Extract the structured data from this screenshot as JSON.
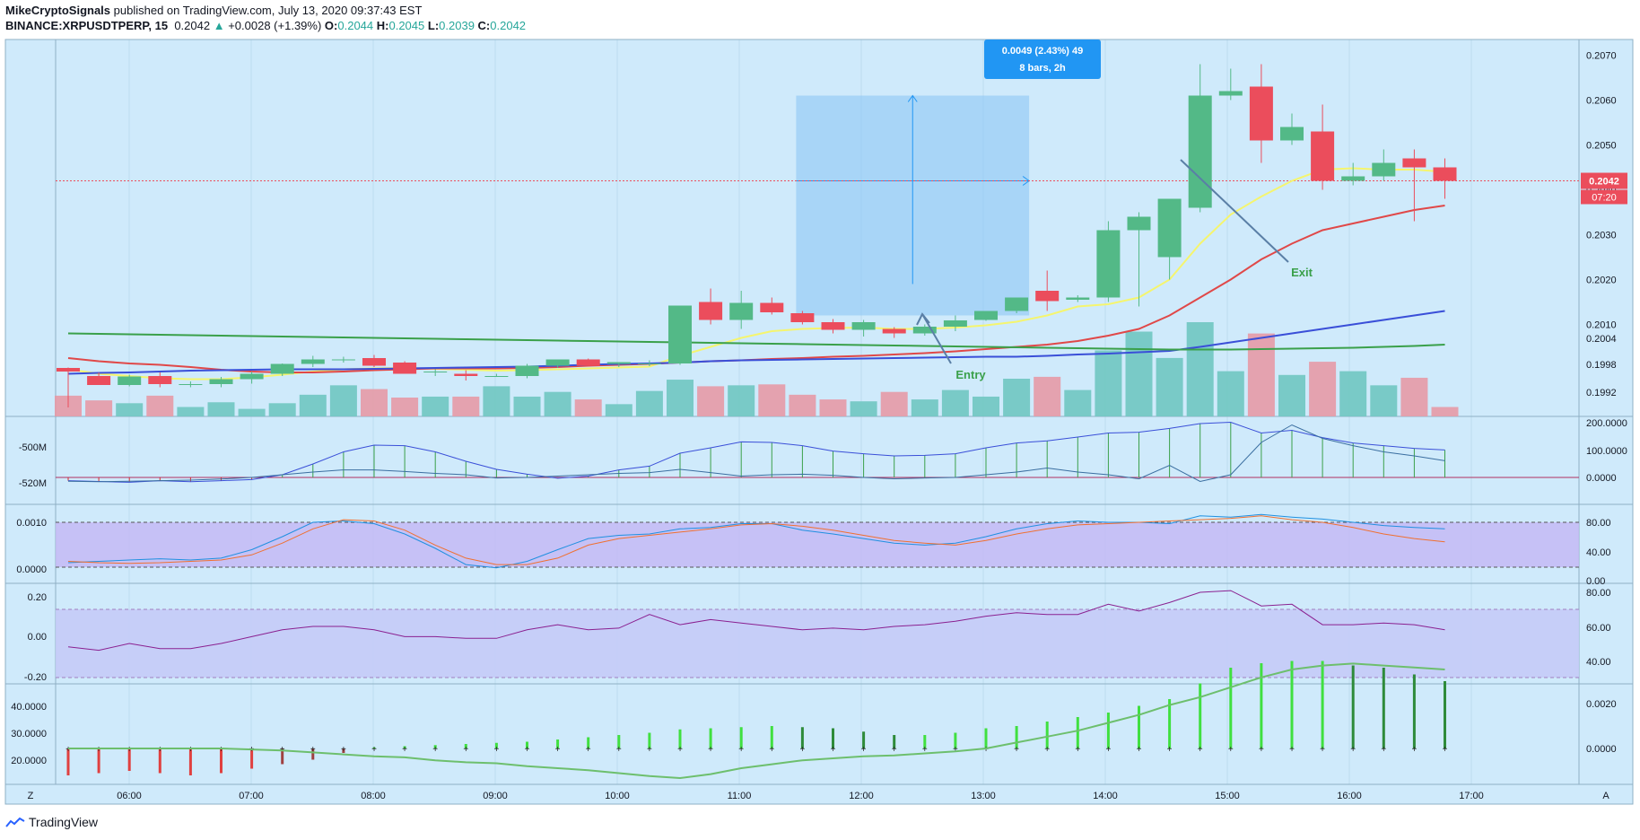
{
  "header": {
    "author": "MikeCryptoSignals",
    "published": "published on TradingView.com, July 13, 2020 09:37:43 EST",
    "symbol": "BINANCE:XRPUSDTPERP, 15",
    "last": "0.2042",
    "change": "+0.0028 (+1.39%)",
    "o_label": "O:",
    "o": "0.2044",
    "h_label": "H:",
    "h": "0.2045",
    "l_label": "L:",
    "l": "0.2039",
    "c_label": "C:",
    "c": "0.2042"
  },
  "footer": {
    "brand": "TradingView"
  },
  "colors": {
    "background": "#cfeafb",
    "bull": "#53b987",
    "bear": "#eb4d5c",
    "ma_yellow": "#f5f56e",
    "ma_red": "#e04848",
    "ma_blue": "#3a4fd8",
    "ma_green": "#3aa04a",
    "price_label": "#eb4d5c",
    "measure_box": "#2196f3"
  },
  "chart_data": [
    {
      "type": "candlestick",
      "pane": "price",
      "x_tick_labels": [
        "06:00",
        "07:00",
        "08:00",
        "09:00",
        "10:00",
        "11:00",
        "12:00",
        "13:00",
        "14:00",
        "15:00",
        "16:00",
        "17:00"
      ],
      "y_tick_labels": [
        "0.2070",
        "0.2060",
        "0.2050",
        "0.2040",
        "0.2030",
        "0.2020",
        "0.2010",
        "0.2004",
        "0.1998",
        "0.1992"
      ],
      "current_price_label": "0.2042",
      "countdown_label": "07:20",
      "ohlc": [
        [
          0.20003,
          0.20004,
          0.19915,
          0.19995
        ],
        [
          0.19985,
          0.19993,
          0.19968,
          0.19965
        ],
        [
          0.19965,
          0.19988,
          0.19962,
          0.19984
        ],
        [
          0.19985,
          0.19993,
          0.1996,
          0.19967
        ],
        [
          0.19967,
          0.19973,
          0.1996,
          0.19967
        ],
        [
          0.19967,
          0.19983,
          0.1996,
          0.19978
        ],
        [
          0.19978,
          0.19995,
          0.19968,
          0.1999
        ],
        [
          0.1999,
          0.20013,
          0.19985,
          0.20012
        ],
        [
          0.20012,
          0.2003,
          0.20005,
          0.20022
        ],
        [
          0.20022,
          0.20028,
          0.20015,
          0.20022
        ],
        [
          0.20025,
          0.20032,
          0.20005,
          0.20008
        ],
        [
          0.20015,
          0.20018,
          0.1999,
          0.1999
        ],
        [
          0.19993,
          0.2,
          0.19985,
          0.19995
        ],
        [
          0.1999,
          0.19998,
          0.19975,
          0.19985
        ],
        [
          0.19985,
          0.1999,
          0.19983,
          0.19985
        ],
        [
          0.19985,
          0.20012,
          0.1998,
          0.20008
        ],
        [
          0.20008,
          0.20022,
          0.20003,
          0.20022
        ],
        [
          0.20022,
          0.20024,
          0.20008,
          0.20008
        ],
        [
          0.20012,
          0.20016,
          0.20005,
          0.20016
        ],
        [
          0.20013,
          0.2002,
          0.20007,
          0.20013
        ],
        [
          0.20013,
          0.20142,
          0.2001,
          0.20142
        ],
        [
          0.2015,
          0.2018,
          0.201,
          0.2011
        ],
        [
          0.2011,
          0.20175,
          0.2009,
          0.20148
        ],
        [
          0.20148,
          0.2016,
          0.20122,
          0.20127
        ],
        [
          0.20125,
          0.2013,
          0.201,
          0.20105
        ],
        [
          0.20105,
          0.20112,
          0.2008,
          0.20088
        ],
        [
          0.20088,
          0.2011,
          0.20073,
          0.20105
        ],
        [
          0.2009,
          0.20094,
          0.2007,
          0.2008
        ],
        [
          0.2008,
          0.201,
          0.20075,
          0.20095
        ],
        [
          0.20095,
          0.2012,
          0.20085,
          0.20109
        ],
        [
          0.2011,
          0.2013,
          0.20108,
          0.2013
        ],
        [
          0.2013,
          0.2016,
          0.20125,
          0.2016
        ],
        [
          0.20175,
          0.2022,
          0.2013,
          0.20152
        ],
        [
          0.20155,
          0.20165,
          0.2015,
          0.2016
        ],
        [
          0.2016,
          0.2033,
          0.2015,
          0.2031
        ],
        [
          0.2031,
          0.2035,
          0.2014,
          0.2034
        ],
        [
          0.2025,
          0.2038,
          0.202,
          0.2038
        ],
        [
          0.2036,
          0.2068,
          0.2035,
          0.2061
        ],
        [
          0.2061,
          0.2067,
          0.206,
          0.2062
        ],
        [
          0.2063,
          0.2068,
          0.2046,
          0.2051
        ],
        [
          0.2051,
          0.2057,
          0.205,
          0.2054
        ],
        [
          0.2053,
          0.2059,
          0.204,
          0.2042
        ],
        [
          0.2042,
          0.2046,
          0.2041,
          0.2043
        ],
        [
          0.2043,
          0.2049,
          0.2042,
          0.2046
        ],
        [
          0.2047,
          0.2049,
          0.2033,
          0.2045
        ],
        [
          0.2045,
          0.2047,
          0.2038,
          0.2042
        ]
      ],
      "moving_averages": [
        {
          "color": "yellow",
          "values": [
            0.2,
            0.1999,
            0.19985,
            0.1998,
            0.19978,
            0.19978,
            0.19982,
            0.19988,
            0.19995,
            0.2,
            0.20002,
            0.20003,
            0.20001,
            0.19999,
            0.19997,
            0.19998,
            0.2,
            0.20002,
            0.20004,
            0.20006,
            0.2003,
            0.2005,
            0.2007,
            0.20085,
            0.2009,
            0.20092,
            0.20093,
            0.2009,
            0.2009,
            0.20093,
            0.20098,
            0.20106,
            0.2012,
            0.2014,
            0.20145,
            0.2016,
            0.202,
            0.2028,
            0.20345,
            0.20385,
            0.2042,
            0.20445,
            0.20448,
            0.20445,
            0.20445,
            0.2044
          ]
        },
        {
          "color": "red",
          "values": [
            0.20025,
            0.20018,
            0.20013,
            0.2001,
            0.20005,
            0.19999,
            0.19995,
            0.19993,
            0.19993,
            0.19995,
            0.19998,
            0.2,
            0.20002,
            0.20002,
            0.20002,
            0.20003,
            0.20005,
            0.20008,
            0.2001,
            0.20012,
            0.20015,
            0.20018,
            0.2002,
            0.20023,
            0.20025,
            0.20028,
            0.2003,
            0.20033,
            0.20036,
            0.2004,
            0.20045,
            0.2005,
            0.20055,
            0.20063,
            0.20075,
            0.2009,
            0.2012,
            0.2016,
            0.202,
            0.20245,
            0.2028,
            0.2031,
            0.20325,
            0.2034,
            0.20355,
            0.20365
          ]
        },
        {
          "color": "blue",
          "values": [
            0.1999,
            0.19992,
            0.19993,
            0.19995,
            0.19997,
            0.19998,
            0.19999,
            0.2,
            0.2,
            0.2,
            0.20001,
            0.20002,
            0.20003,
            0.20004,
            0.20005,
            0.20006,
            0.20008,
            0.2001,
            0.20012,
            0.20013,
            0.20015,
            0.20018,
            0.2002,
            0.20021,
            0.20022,
            0.20023,
            0.20024,
            0.20025,
            0.20026,
            0.20027,
            0.20028,
            0.20028,
            0.2003,
            0.20033,
            0.20035,
            0.20038,
            0.20041,
            0.2005,
            0.2006,
            0.2007,
            0.2008,
            0.2009,
            0.201,
            0.2011,
            0.2012,
            0.2013
          ]
        },
        {
          "color": "green",
          "values": [
            0.2008,
            0.20079,
            0.20078,
            0.20077,
            0.20076,
            0.20075,
            0.20074,
            0.20073,
            0.20072,
            0.20071,
            0.2007,
            0.20069,
            0.20068,
            0.20067,
            0.20066,
            0.20065,
            0.20064,
            0.20063,
            0.20062,
            0.20061,
            0.2006,
            0.20059,
            0.20058,
            0.20057,
            0.20056,
            0.20055,
            0.20054,
            0.20053,
            0.20052,
            0.20051,
            0.2005,
            0.20049,
            0.20048,
            0.20047,
            0.20046,
            0.20045,
            0.20044,
            0.20044,
            0.20044,
            0.20045,
            0.20046,
            0.20047,
            0.20048,
            0.2005,
            0.20052,
            0.20055
          ]
        }
      ],
      "volume": [
        0.22,
        0.17,
        0.14,
        0.22,
        0.1,
        0.15,
        0.08,
        0.14,
        0.23,
        0.33,
        0.29,
        0.2,
        0.21,
        0.21,
        0.32,
        0.21,
        0.26,
        0.18,
        0.13,
        0.27,
        0.39,
        0.32,
        0.33,
        0.34,
        0.23,
        0.18,
        0.16,
        0.26,
        0.18,
        0.28,
        0.21,
        0.4,
        0.42,
        0.28,
        0.7,
        0.9,
        0.62,
        1.0,
        0.48,
        0.88,
        0.44,
        0.58,
        0.48,
        0.33,
        0.41,
        0.1
      ],
      "annotations": [
        {
          "text": "0.0049 (2.43%) 49",
          "line2": "8 bars, 2h"
        },
        {
          "text": "Entry"
        },
        {
          "text": "Exit"
        }
      ]
    },
    {
      "type": "line",
      "pane": "indicator-1",
      "y_tick_labels_right": [
        "200.0000",
        "100.0000",
        "0.0000"
      ],
      "y_tick_labels_left": [
        "-500M",
        "-520M"
      ],
      "series": [
        {
          "values": [
            -12,
            -15,
            -18,
            -12,
            -16,
            -12,
            -8,
            10,
            50,
            95,
            120,
            118,
            95,
            60,
            30,
            12,
            -3,
            5,
            28,
            42,
            90,
            110,
            132,
            130,
            118,
            98,
            88,
            80,
            82,
            88,
            110,
            128,
            136,
            150,
            165,
            168,
            182,
            200,
            205,
            165,
            175,
            148,
            128,
            118,
            108,
            102
          ]
        },
        {
          "values": [
            -14,
            -16,
            -14,
            -12,
            -10,
            -6,
            0,
            10,
            20,
            28,
            28,
            22,
            15,
            10,
            -2,
            0,
            5,
            10,
            15,
            18,
            30,
            18,
            5,
            10,
            12,
            8,
            0,
            -5,
            -2,
            0,
            10,
            20,
            35,
            20,
            10,
            -5,
            45,
            -15,
            10,
            130,
            195,
            145,
            118,
            95,
            80,
            62
          ]
        }
      ]
    },
    {
      "type": "line",
      "pane": "indicator-2",
      "y_tick_labels_right": [
        "80.00",
        "40.00",
        "0.00"
      ],
      "y_tick_labels_left": [
        "0.0010",
        "0.0000"
      ],
      "series": [
        {
          "values": [
            18,
            20,
            22,
            24,
            22,
            25,
            38,
            58,
            80,
            82,
            78,
            62,
            40,
            15,
            10,
            20,
            38,
            55,
            60,
            62,
            70,
            72,
            78,
            78,
            68,
            62,
            55,
            48,
            45,
            48,
            58,
            70,
            78,
            82,
            80,
            80,
            78,
            90,
            88,
            92,
            88,
            85,
            80,
            75,
            72,
            70
          ]
        },
        {
          "values": [
            20,
            18,
            17,
            18,
            20,
            22,
            30,
            48,
            70,
            84,
            82,
            68,
            45,
            25,
            15,
            15,
            25,
            45,
            55,
            60,
            65,
            70,
            76,
            78,
            74,
            68,
            60,
            52,
            48,
            45,
            52,
            62,
            70,
            76,
            78,
            80,
            82,
            84,
            86,
            90,
            84,
            80,
            72,
            62,
            55,
            50
          ]
        }
      ]
    },
    {
      "type": "line",
      "pane": "indicator-3",
      "y_tick_labels_right": [
        "80.00",
        "60.00",
        "40.00"
      ],
      "y_tick_labels_left": [
        "0.20",
        "0.00",
        "-0.20"
      ],
      "series": [
        {
          "values": [
            48,
            46,
            50,
            47,
            47,
            50,
            54,
            58,
            60,
            60,
            58,
            54,
            54,
            53,
            53,
            58,
            61,
            58,
            59,
            67,
            61,
            64,
            62,
            60,
            58,
            59,
            58,
            60,
            61,
            63,
            66,
            68,
            67,
            67,
            73,
            69,
            74,
            80,
            81,
            72,
            73,
            61,
            61,
            62,
            61,
            58
          ]
        }
      ]
    },
    {
      "type": "bar",
      "pane": "indicator-4",
      "y_tick_labels_right": [
        "0.0020",
        "0.0000"
      ],
      "y_tick_labels_left": [
        "40.0000",
        "30.0000",
        "20.0000"
      ],
      "values": [
        -0.0012,
        -0.0011,
        -0.001,
        -0.0011,
        -0.0012,
        -0.0011,
        -0.0009,
        -0.0007,
        -0.0005,
        -0.0002,
        5e-05,
        0.0001,
        0.00015,
        0.0002,
        0.00025,
        0.0003,
        0.0004,
        0.0005,
        0.0006,
        0.0007,
        0.00085,
        0.0009,
        0.00095,
        0.001,
        0.00095,
        0.0009,
        0.00075,
        0.0006,
        0.0006,
        0.0007,
        0.0009,
        0.001,
        0.0012,
        0.0014,
        0.0016,
        0.0019,
        0.0022,
        0.0029,
        0.0036,
        0.0038,
        0.0039,
        0.0039,
        0.0037,
        0.0036,
        0.0033,
        0.003
      ]
    }
  ]
}
